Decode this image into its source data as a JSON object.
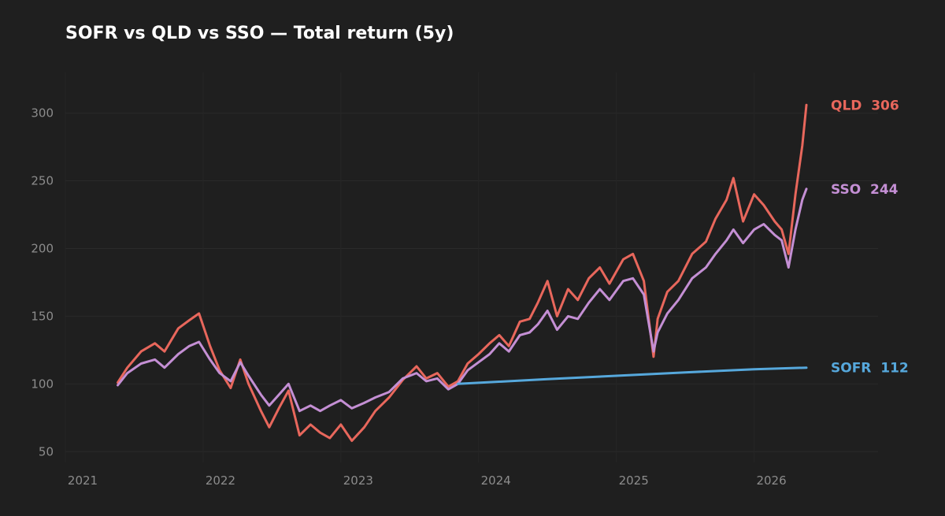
{
  "chart_data": {
    "type": "line",
    "title": "SOFR vs QLD vs SSO — Total return (5y)",
    "xlabel": "",
    "ylabel": "",
    "ylim": [
      42,
      330
    ],
    "xlim": [
      2021.0,
      2026.9
    ],
    "grid": true,
    "legend": "end-labels",
    "x_ticks": [
      2021,
      2022,
      2023,
      2024,
      2025,
      2026
    ],
    "y_ticks": [
      50,
      100,
      150,
      200,
      250,
      300
    ],
    "series": [
      {
        "name": "QLD",
        "end_label": "306",
        "color": "#e8675c",
        "x": [
          2021.38,
          2021.45,
          2021.55,
          2021.65,
          2021.72,
          2021.82,
          2021.9,
          2021.97,
          2022.05,
          2022.12,
          2022.2,
          2022.27,
          2022.33,
          2022.42,
          2022.48,
          2022.55,
          2022.62,
          2022.7,
          2022.78,
          2022.85,
          2022.92,
          2023.0,
          2023.08,
          2023.17,
          2023.25,
          2023.35,
          2023.45,
          2023.55,
          2023.62,
          2023.7,
          2023.78,
          2023.85,
          2023.92,
          2024.0,
          2024.08,
          2024.15,
          2024.22,
          2024.3,
          2024.37,
          2024.43,
          2024.5,
          2024.57,
          2024.65,
          2024.72,
          2024.8,
          2024.88,
          2024.95,
          2025.05,
          2025.12,
          2025.2,
          2025.27,
          2025.3,
          2025.37,
          2025.45,
          2025.55,
          2025.65,
          2025.72,
          2025.8,
          2025.85,
          2025.92,
          2026.0,
          2026.07,
          2026.15,
          2026.2,
          2026.25,
          2026.3,
          2026.35,
          2026.38
        ],
        "values": [
          101,
          112,
          124,
          130,
          124,
          141,
          147,
          152,
          128,
          110,
          97,
          118,
          100,
          80,
          68,
          82,
          95,
          62,
          70,
          64,
          60,
          70,
          58,
          68,
          80,
          90,
          103,
          113,
          104,
          108,
          98,
          102,
          115,
          122,
          130,
          136,
          128,
          146,
          148,
          160,
          176,
          150,
          170,
          162,
          178,
          186,
          174,
          192,
          196,
          176,
          120,
          148,
          168,
          176,
          196,
          205,
          222,
          236,
          252,
          220,
          240,
          232,
          220,
          214,
          196,
          240,
          276,
          306
        ]
      },
      {
        "name": "SSO",
        "end_label": "244",
        "color": "#c48fd4",
        "x": [
          2021.38,
          2021.45,
          2021.55,
          2021.65,
          2021.72,
          2021.82,
          2021.9,
          2021.97,
          2022.05,
          2022.12,
          2022.2,
          2022.27,
          2022.33,
          2022.42,
          2022.48,
          2022.55,
          2022.62,
          2022.7,
          2022.78,
          2022.85,
          2022.92,
          2023.0,
          2023.08,
          2023.17,
          2023.25,
          2023.35,
          2023.45,
          2023.55,
          2023.62,
          2023.7,
          2023.78,
          2023.85,
          2023.92,
          2024.0,
          2024.08,
          2024.15,
          2024.22,
          2024.3,
          2024.37,
          2024.43,
          2024.5,
          2024.57,
          2024.65,
          2024.72,
          2024.8,
          2024.88,
          2024.95,
          2025.05,
          2025.12,
          2025.2,
          2025.27,
          2025.3,
          2025.37,
          2025.45,
          2025.55,
          2025.65,
          2025.72,
          2025.8,
          2025.85,
          2025.92,
          2026.0,
          2026.07,
          2026.15,
          2026.2,
          2026.25,
          2026.3,
          2026.35,
          2026.38
        ],
        "values": [
          99,
          108,
          115,
          118,
          112,
          122,
          128,
          131,
          118,
          108,
          102,
          116,
          106,
          92,
          84,
          92,
          100,
          80,
          84,
          80,
          84,
          88,
          82,
          86,
          90,
          94,
          104,
          108,
          102,
          104,
          96,
          100,
          110,
          116,
          122,
          130,
          124,
          136,
          138,
          144,
          154,
          140,
          150,
          148,
          160,
          170,
          162,
          176,
          178,
          166,
          124,
          138,
          152,
          162,
          178,
          186,
          196,
          206,
          214,
          204,
          214,
          218,
          210,
          206,
          186,
          214,
          236,
          244
        ]
      },
      {
        "name": "SOFR",
        "end_label": "112",
        "color": "#56a8dc",
        "x": [
          2023.85,
          2024.5,
          2025.0,
          2025.5,
          2026.0,
          2026.38
        ],
        "values": [
          100,
          103.5,
          106,
          108.5,
          110.8,
          112
        ]
      }
    ]
  }
}
